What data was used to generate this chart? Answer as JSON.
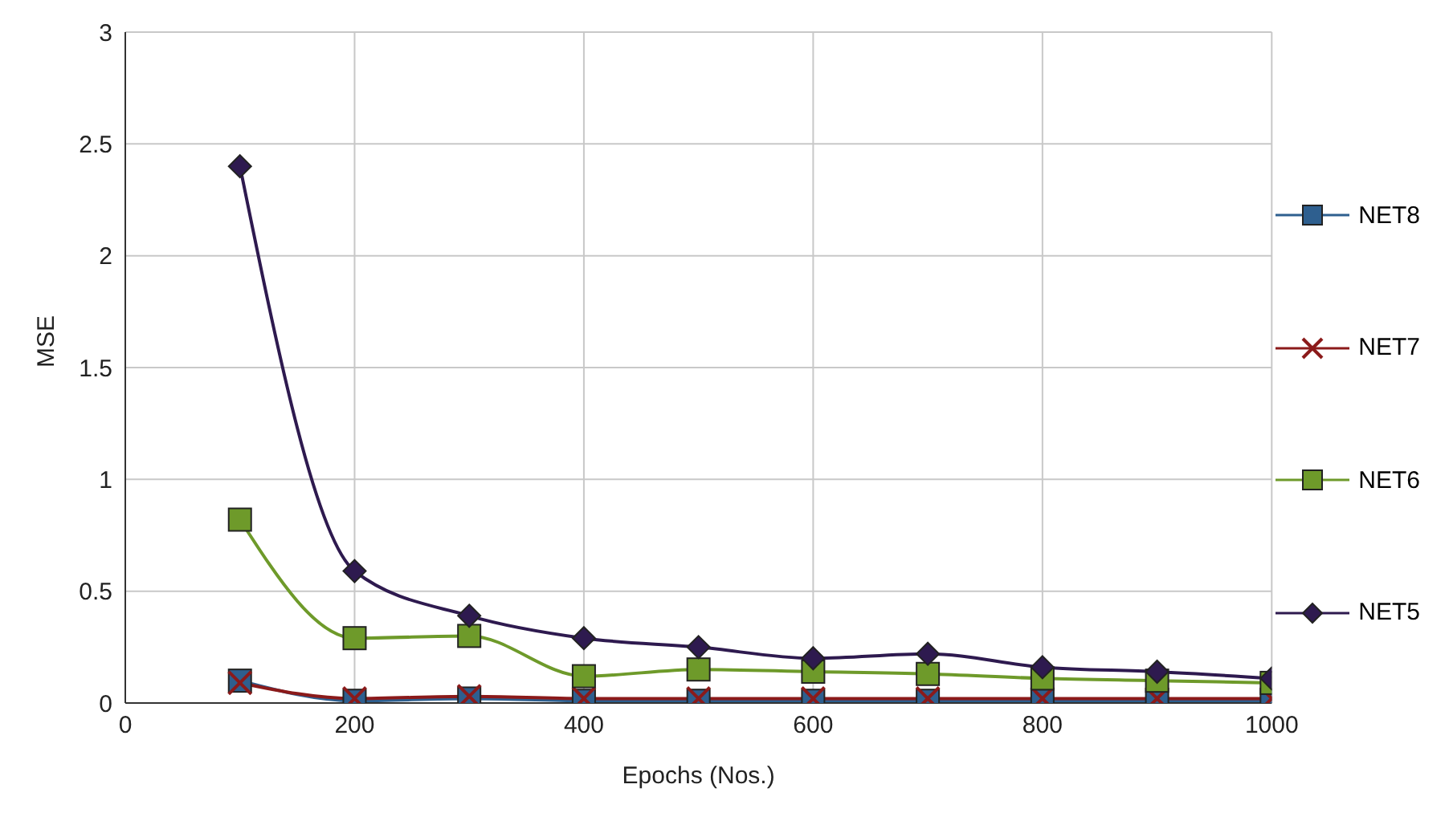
{
  "chart_data": {
    "type": "line",
    "xlabel": "Epochs (Nos.)",
    "ylabel": "MSE",
    "x": [
      100,
      200,
      300,
      400,
      500,
      600,
      700,
      800,
      900,
      1000
    ],
    "xlim": [
      0,
      1000
    ],
    "xticks": [
      0,
      200,
      400,
      600,
      800,
      1000
    ],
    "ylim": [
      0,
      3
    ],
    "yticks": [
      0,
      0.5,
      1,
      1.5,
      2,
      2.5,
      3
    ],
    "grid": true,
    "legend": "right",
    "series": [
      {
        "name": "NET8",
        "color": "#2e5f8f",
        "marker": "square",
        "values": [
          0.1,
          0.01,
          0.02,
          0.01,
          0.01,
          0.01,
          0.01,
          0.01,
          0.01,
          0.01
        ]
      },
      {
        "name": "NET7",
        "color": "#8b1a1a",
        "marker": "cross",
        "values": [
          0.09,
          0.02,
          0.03,
          0.02,
          0.02,
          0.02,
          0.02,
          0.02,
          0.02,
          0.02
        ]
      },
      {
        "name": "NET6",
        "color": "#6e9a2a",
        "marker": "square",
        "values": [
          0.82,
          0.29,
          0.3,
          0.12,
          0.15,
          0.14,
          0.13,
          0.11,
          0.1,
          0.09
        ]
      },
      {
        "name": "NET5",
        "color": "#2e1a4f",
        "marker": "diamond",
        "values": [
          2.4,
          0.59,
          0.39,
          0.29,
          0.25,
          0.2,
          0.22,
          0.16,
          0.14,
          0.11
        ]
      }
    ]
  }
}
